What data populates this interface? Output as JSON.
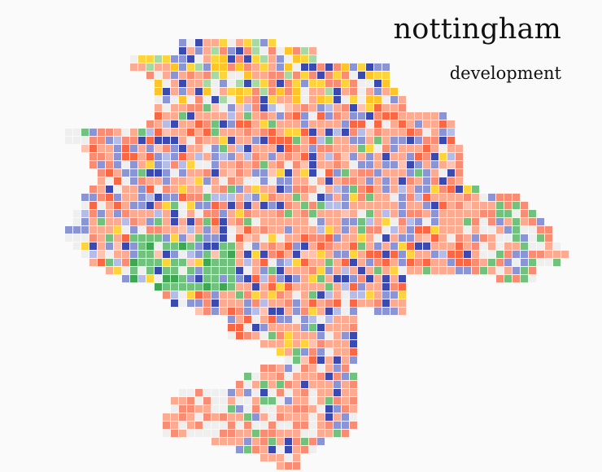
{
  "title": "nottingham",
  "subtitle": "development",
  "palette": {
    "empty": "#efefef",
    "salmon": "#fcab93",
    "salmon_light": "#fdc2b0",
    "orange_red": "#f86844",
    "coral": "#f78d74",
    "navy": "#3a4aae",
    "periwinkle": "#8b95d4",
    "lavender": "#b5bce6",
    "yellow": "#fed43e",
    "gold": "#fec52a",
    "green": "#72c17e",
    "green_light": "#a8d8a6",
    "green_dark": "#3fa654"
  }
}
